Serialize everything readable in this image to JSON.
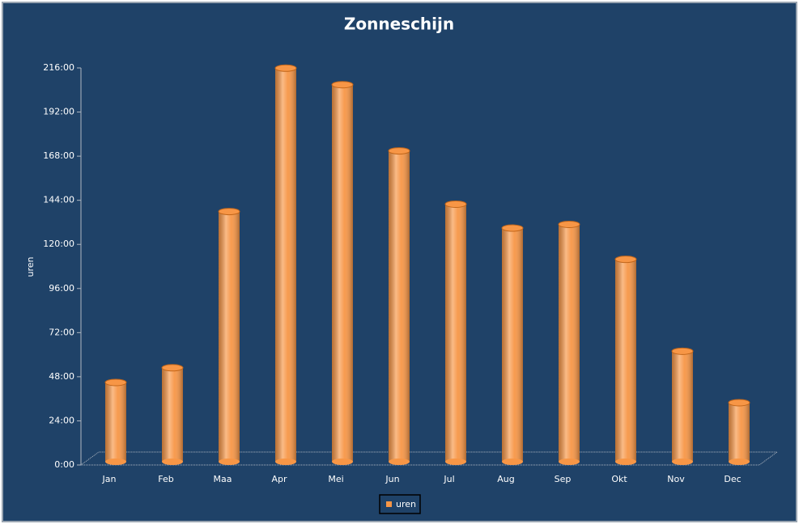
{
  "chart_data": {
    "type": "bar",
    "title": "Zonneschijn",
    "ylabel": "uren",
    "categories": [
      "Jan",
      "Feb",
      "Maa",
      "Apr",
      "Mei",
      "Jun",
      "Jul",
      "Aug",
      "Sep",
      "Okt",
      "Nov",
      "Dec"
    ],
    "series": [
      {
        "name": "uren",
        "color": "#f79646",
        "values": [
          44,
          52,
          137,
          215,
          206,
          170,
          141,
          128,
          130,
          111,
          61,
          33
        ]
      }
    ],
    "ylim": [
      0,
      216
    ],
    "yticks": [
      {
        "value": 0,
        "label": "0:00"
      },
      {
        "value": 24,
        "label": "24:00"
      },
      {
        "value": 48,
        "label": "48:00"
      },
      {
        "value": 72,
        "label": "72:00"
      },
      {
        "value": 96,
        "label": "96:00"
      },
      {
        "value": 120,
        "label": "120:00"
      },
      {
        "value": 144,
        "label": "144:00"
      },
      {
        "value": 168,
        "label": "168:00"
      },
      {
        "value": 192,
        "label": "192:00"
      },
      {
        "value": 216,
        "label": "216:00"
      }
    ],
    "grid": false,
    "legend": "bottom"
  }
}
